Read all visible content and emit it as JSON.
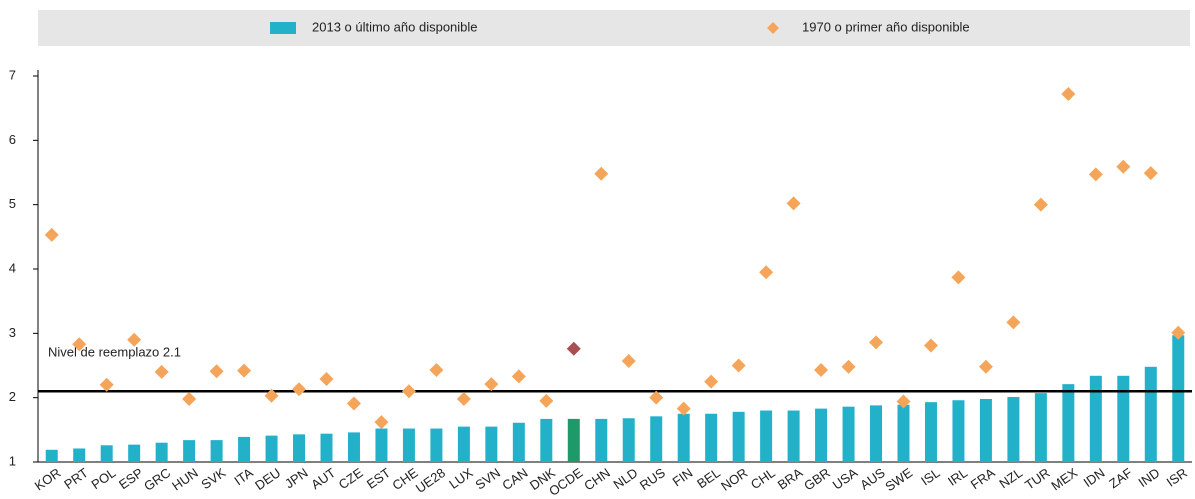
{
  "chart_data": {
    "type": "bar_scatter",
    "categories": [
      "KOR",
      "PRT",
      "POL",
      "ESP",
      "GRC",
      "HUN",
      "SVK",
      "ITA",
      "DEU",
      "JPN",
      "AUT",
      "CZE",
      "EST",
      "CHE",
      "UE28",
      "LUX",
      "SVN",
      "CAN",
      "DNK",
      "OCDE",
      "CHN",
      "NLD",
      "RUS",
      "FIN",
      "BEL",
      "NOR",
      "CHL",
      "BRA",
      "GBR",
      "USA",
      "AUS",
      "SWE",
      "ISL",
      "IRL",
      "FRA",
      "NZL",
      "TUR",
      "MEX",
      "IDN",
      "ZAF",
      "IND",
      "ISR"
    ],
    "series": [
      {
        "name": "2013 o último año disponible",
        "type": "bar",
        "color": "#22b1c8",
        "values": [
          1.19,
          1.21,
          1.26,
          1.27,
          1.3,
          1.34,
          1.34,
          1.39,
          1.41,
          1.43,
          1.44,
          1.46,
          1.52,
          1.52,
          1.52,
          1.55,
          1.55,
          1.61,
          1.67,
          1.67,
          1.67,
          1.68,
          1.71,
          1.75,
          1.75,
          1.78,
          1.8,
          1.8,
          1.83,
          1.86,
          1.88,
          1.89,
          1.93,
          1.96,
          1.98,
          2.01,
          2.07,
          2.21,
          2.34,
          2.34,
          2.48,
          2.97
        ]
      },
      {
        "name": "1970 o primer año disponible",
        "type": "scatter",
        "color": "#f5a55a",
        "values": [
          4.53,
          2.83,
          2.2,
          2.9,
          2.4,
          1.98,
          2.41,
          2.42,
          2.03,
          2.13,
          2.29,
          1.91,
          1.62,
          2.1,
          2.43,
          1.98,
          2.21,
          2.33,
          1.95,
          2.76,
          5.48,
          2.57,
          2.0,
          1.83,
          2.25,
          2.5,
          3.95,
          5.02,
          2.43,
          2.48,
          2.86,
          1.94,
          2.81,
          3.87,
          2.48,
          3.17,
          5.0,
          6.72,
          5.47,
          5.59,
          5.49,
          3.01
        ]
      }
    ],
    "highlight": {
      "category": "OCDE",
      "bar_color": "#1e9a6a",
      "marker_color": "#a8504f"
    },
    "ylim": [
      1,
      7
    ],
    "yticks": [
      1,
      2,
      3,
      4,
      5,
      6,
      7
    ],
    "reference_line": {
      "value": 2.1,
      "label": "Nivel de reemplazo 2.1",
      "color": "#000000"
    },
    "legend": "top"
  }
}
